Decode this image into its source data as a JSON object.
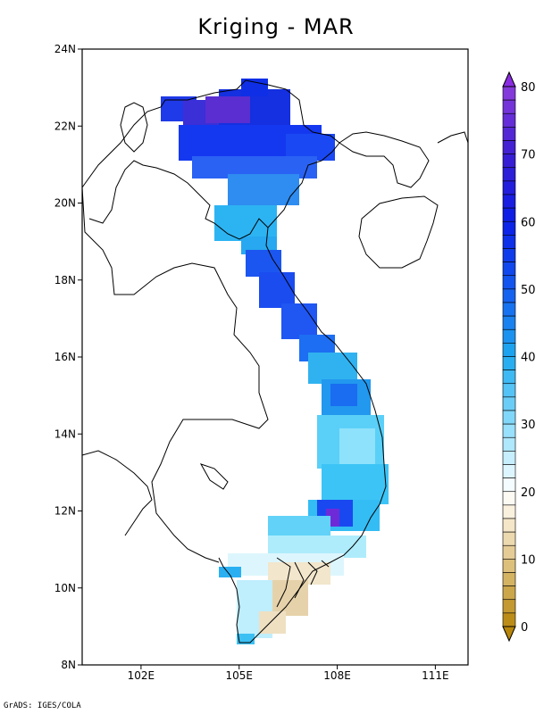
{
  "title": "Kriging - MAR",
  "footer": "GrADS: IGES/COLA",
  "map": {
    "lat_ticks": [
      "24N",
      "22N",
      "20N",
      "18N",
      "16N",
      "14N",
      "12N",
      "10N",
      "8N"
    ],
    "lon_ticks": [
      "102E",
      "105E",
      "108E",
      "111E"
    ],
    "lat_range": [
      8,
      24
    ],
    "lon_range": [
      100.2,
      112.0
    ]
  },
  "colorbar": {
    "labels": [
      "0",
      "10",
      "20",
      "30",
      "40",
      "50",
      "60",
      "70",
      "80"
    ],
    "min": 0,
    "max": 80,
    "low_color": "#b8860b",
    "mid_color": "#ffffff",
    "high_color": "#8a2be2"
  }
}
